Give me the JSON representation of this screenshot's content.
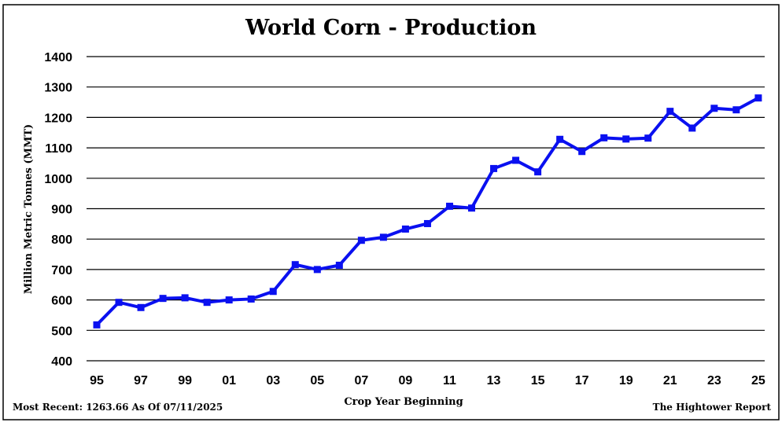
{
  "chart_data": {
    "type": "line",
    "title": "World Corn - Production",
    "xlabel": "Crop Year Beginning",
    "ylabel": "Million Metric Tonnes (MMT)",
    "ylim": [
      400,
      1400
    ],
    "yticks": [
      400,
      500,
      600,
      700,
      800,
      900,
      1000,
      1100,
      1200,
      1300,
      1400
    ],
    "grid": true,
    "xtick_labels": [
      "95",
      "97",
      "99",
      "01",
      "03",
      "05",
      "07",
      "09",
      "11",
      "13",
      "15",
      "17",
      "19",
      "21",
      "23",
      "25"
    ],
    "x": [
      "95",
      "96",
      "97",
      "98",
      "99",
      "00",
      "01",
      "02",
      "03",
      "04",
      "05",
      "06",
      "07",
      "08",
      "09",
      "10",
      "11",
      "12",
      "13",
      "14",
      "15",
      "16",
      "17",
      "18",
      "19",
      "20",
      "21",
      "22",
      "23",
      "24",
      "25"
    ],
    "series": [
      {
        "values": [
          518,
          592,
          575,
          605,
          607,
          592,
          600,
          603,
          628,
          716,
          700,
          714,
          796,
          806,
          833,
          851,
          908,
          902,
          1032,
          1059,
          1021,
          1128,
          1088,
          1133,
          1129,
          1132,
          1220,
          1165,
          1230,
          1225,
          1264
        ],
        "color": "#0a10f0"
      }
    ],
    "footnote_left": "Most Recent: 1263.66 As Of 07/11/2025",
    "footnote_right": "The Hightower Report"
  }
}
